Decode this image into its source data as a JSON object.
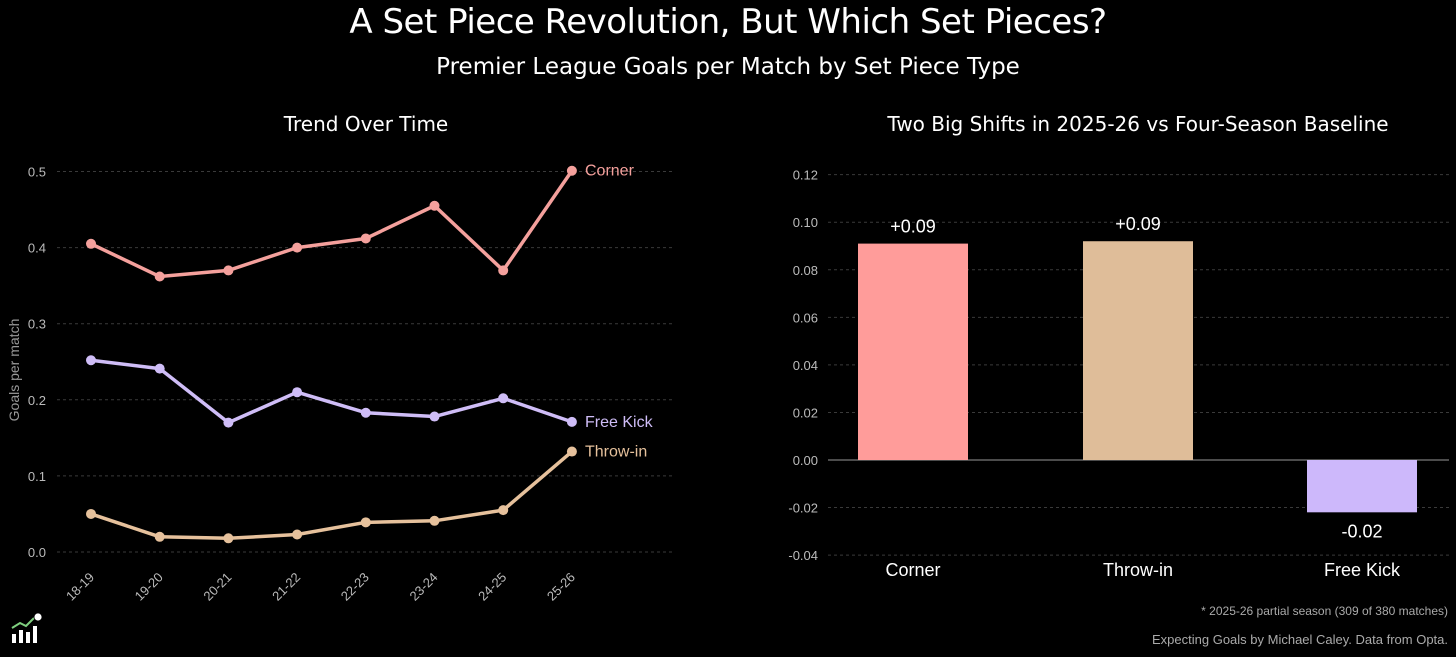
{
  "title": "A Set Piece Revolution, But Which Set Pieces?",
  "subtitle": "Premier League Goals per Match by Set Piece Type",
  "footnote": "* 2025-26 partial season (309 of 380 matches)",
  "credit": "Expecting Goals by Michael Caley. Data from Opta.",
  "logo_icon": "football-chart-logo-icon",
  "chart_data": [
    {
      "type": "line",
      "title": "Trend Over Time",
      "xlabel": "",
      "ylabel": "Goals per match",
      "x": [
        "18-19",
        "19-20",
        "20-21",
        "21-22",
        "22-23",
        "23-24",
        "24-25",
        "25-26"
      ],
      "ylim": [
        0,
        0.52
      ],
      "yticks": [
        "0.0",
        "0.1",
        "0.2",
        "0.3",
        "0.4",
        "0.5"
      ],
      "grid": true,
      "series": [
        {
          "name": "Corner",
          "color": "#f4a09c",
          "values": [
            0.405,
            0.362,
            0.37,
            0.4,
            0.412,
            0.455,
            0.37,
            0.501
          ]
        },
        {
          "name": "Free Kick",
          "color": "#cfbdf7",
          "values": [
            0.252,
            0.241,
            0.17,
            0.21,
            0.183,
            0.178,
            0.202,
            0.171
          ]
        },
        {
          "name": "Throw-in",
          "color": "#e6c19c",
          "values": [
            0.05,
            0.02,
            0.018,
            0.023,
            0.039,
            0.041,
            0.055,
            0.132
          ]
        }
      ]
    },
    {
      "type": "bar",
      "title": "Two Big Shifts in 2025-26 vs Four-Season Baseline",
      "xlabel": "",
      "ylabel": "",
      "categories": [
        "Corner",
        "Throw-in",
        "Free Kick"
      ],
      "values": [
        0.091,
        0.092,
        -0.022
      ],
      "value_labels": [
        "+0.09",
        "+0.09",
        "-0.02"
      ],
      "colors": [
        "#ff9c9a",
        "#dfbd99",
        "#cdb8fb"
      ],
      "ylim": [
        -0.04,
        0.12
      ],
      "yticks": [
        "0.12",
        "0.10",
        "0.08",
        "0.06",
        "0.04",
        "0.02",
        "0.00",
        "-0.02",
        "-0.04"
      ],
      "grid": true
    }
  ]
}
